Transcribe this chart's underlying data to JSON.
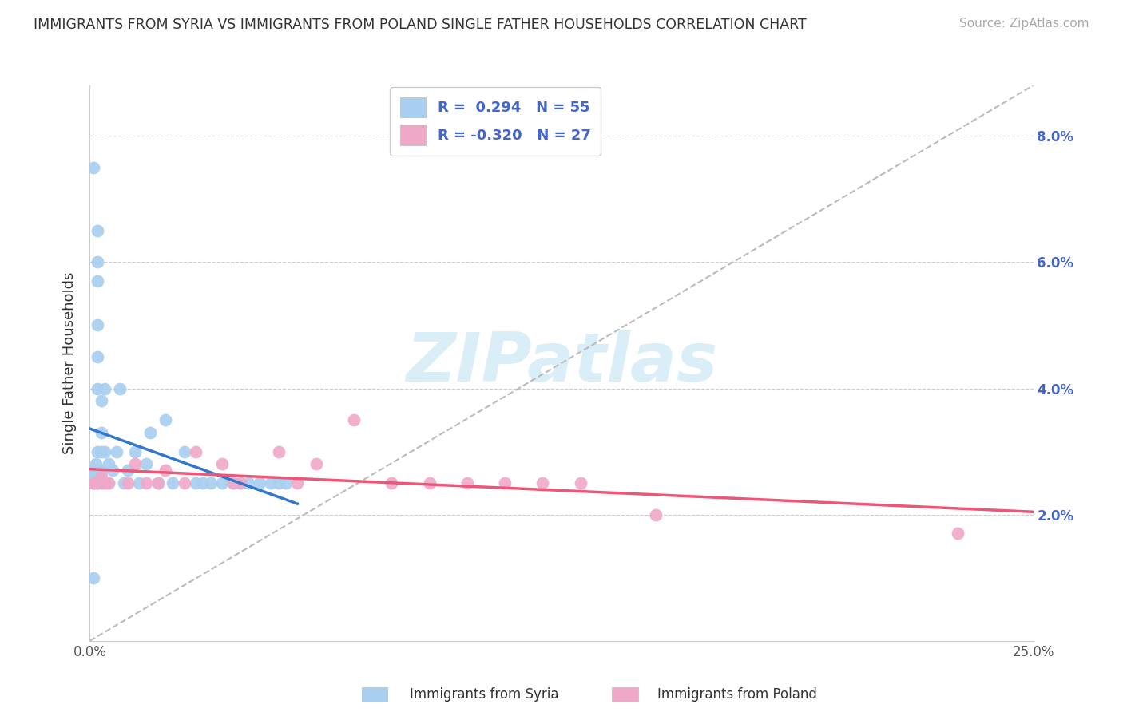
{
  "title": "IMMIGRANTS FROM SYRIA VS IMMIGRANTS FROM POLAND SINGLE FATHER HOUSEHOLDS CORRELATION CHART",
  "source": "Source: ZipAtlas.com",
  "ylabel": "Single Father Households",
  "legend_syria": "Immigrants from Syria",
  "legend_poland": "Immigrants from Poland",
  "r_syria": " 0.294",
  "n_syria": "55",
  "r_poland": "-0.320",
  "n_poland": "27",
  "xlim": [
    0.0,
    0.25
  ],
  "ylim": [
    0.0,
    0.088
  ],
  "yticks": [
    0.02,
    0.04,
    0.06,
    0.08
  ],
  "ytick_labels": [
    "2.0%",
    "4.0%",
    "6.0%",
    "8.0%"
  ],
  "xtick_labels": [
    "0.0%",
    "25.0%"
  ],
  "color_syria": "#a8cef0",
  "color_poland": "#f0a8c8",
  "line_syria": "#3377cc",
  "line_poland": "#ee5577",
  "watermark_color": "#daeef8",
  "grid_color": "#cccccc",
  "title_color": "#333333",
  "source_color": "#aaaaaa",
  "axis_label_color": "#4466cc",
  "syria_x": [
    0.0005,
    0.001,
    0.001,
    0.001,
    0.001,
    0.001,
    0.0015,
    0.0015,
    0.002,
    0.002,
    0.002,
    0.002,
    0.002,
    0.002,
    0.002,
    0.002,
    0.003,
    0.003,
    0.003,
    0.003,
    0.003,
    0.004,
    0.004,
    0.004,
    0.005,
    0.005,
    0.006,
    0.007,
    0.008,
    0.009,
    0.01,
    0.012,
    0.013,
    0.015,
    0.016,
    0.018,
    0.02,
    0.022,
    0.025,
    0.028,
    0.03,
    0.032,
    0.035,
    0.038,
    0.04,
    0.042,
    0.045,
    0.048,
    0.05,
    0.052,
    0.001,
    0.002,
    0.002,
    0.003,
    0.001
  ],
  "syria_y": [
    0.027,
    0.026,
    0.025,
    0.025,
    0.025,
    0.027,
    0.025,
    0.028,
    0.025,
    0.026,
    0.027,
    0.04,
    0.06,
    0.057,
    0.045,
    0.03,
    0.025,
    0.027,
    0.03,
    0.033,
    0.025,
    0.025,
    0.03,
    0.04,
    0.028,
    0.025,
    0.027,
    0.03,
    0.04,
    0.025,
    0.027,
    0.03,
    0.025,
    0.028,
    0.033,
    0.025,
    0.035,
    0.025,
    0.03,
    0.025,
    0.025,
    0.025,
    0.025,
    0.025,
    0.025,
    0.025,
    0.025,
    0.025,
    0.025,
    0.025,
    0.01,
    0.065,
    0.05,
    0.038,
    0.075
  ],
  "poland_x": [
    0.001,
    0.002,
    0.003,
    0.004,
    0.005,
    0.01,
    0.012,
    0.015,
    0.018,
    0.02,
    0.025,
    0.028,
    0.035,
    0.038,
    0.04,
    0.05,
    0.055,
    0.06,
    0.07,
    0.08,
    0.09,
    0.1,
    0.11,
    0.12,
    0.13,
    0.15,
    0.23
  ],
  "poland_y": [
    0.025,
    0.025,
    0.026,
    0.025,
    0.025,
    0.025,
    0.028,
    0.025,
    0.025,
    0.027,
    0.025,
    0.03,
    0.028,
    0.025,
    0.025,
    0.03,
    0.025,
    0.028,
    0.035,
    0.025,
    0.025,
    0.025,
    0.025,
    0.025,
    0.025,
    0.02,
    0.017
  ]
}
